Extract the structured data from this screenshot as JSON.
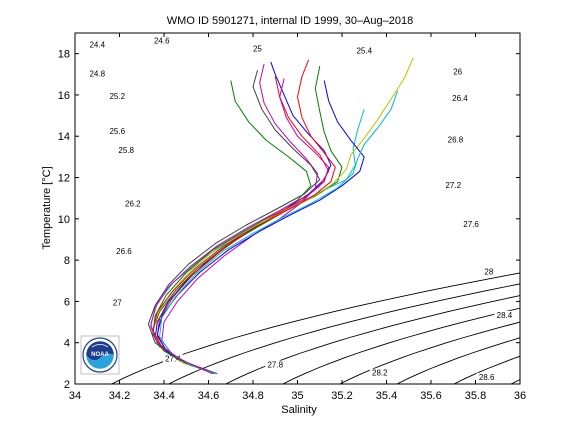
{
  "chart_data": {
    "type": "line",
    "title": "WMO ID 5901271, internal ID 1999, 30–Aug–2018",
    "xlabel": "Salinity",
    "ylabel": "Temperature [°C]",
    "xlim": [
      34,
      36
    ],
    "ylim": [
      2,
      19
    ],
    "x_ticks": [
      "34",
      "34.2",
      "34.4",
      "34.6",
      "34.8",
      "35",
      "35.2",
      "35.4",
      "35.6",
      "35.8",
      "36"
    ],
    "y_ticks": [
      "2",
      "4",
      "6",
      "8",
      "10",
      "12",
      "14",
      "16",
      "18"
    ],
    "grid": false,
    "density_contours": {
      "levels": [
        "24.4",
        "24.6",
        "24.8",
        "25",
        "25.2",
        "25.4",
        "25.6",
        "25.8",
        "26",
        "26.2",
        "26.4",
        "26.6",
        "26.8",
        "27",
        "27.2",
        "27.4",
        "27.6",
        "27.8",
        "28",
        "28.2",
        "28.4",
        "28.6"
      ],
      "color": "#000000",
      "labels": [
        {
          "text": "24.4",
          "s": 34.1,
          "t": 18.3
        },
        {
          "text": "24.6",
          "s": 34.39,
          "t": 18.5
        },
        {
          "text": "25",
          "s": 34.82,
          "t": 18.1
        },
        {
          "text": "25.4",
          "s": 35.3,
          "t": 18.0
        },
        {
          "text": "24.8",
          "s": 34.1,
          "t": 16.9
        },
        {
          "text": "25.2",
          "s": 34.19,
          "t": 15.8
        },
        {
          "text": "26",
          "s": 35.72,
          "t": 17.0
        },
        {
          "text": "26.4",
          "s": 35.73,
          "t": 15.7
        },
        {
          "text": "25.6",
          "s": 34.19,
          "t": 14.1
        },
        {
          "text": "25.8",
          "s": 34.23,
          "t": 13.2
        },
        {
          "text": "26.8",
          "s": 35.71,
          "t": 13.7
        },
        {
          "text": "27.2",
          "s": 35.7,
          "t": 11.5
        },
        {
          "text": "26.2",
          "s": 34.26,
          "t": 10.6
        },
        {
          "text": "27.6",
          "s": 35.78,
          "t": 9.6
        },
        {
          "text": "26.6",
          "s": 34.22,
          "t": 8.3
        },
        {
          "text": "28",
          "s": 35.86,
          "t": 7.3
        },
        {
          "text": "27",
          "s": 34.19,
          "t": 5.8
        },
        {
          "text": "28.4",
          "s": 35.93,
          "t": 5.2
        },
        {
          "text": "27.4",
          "s": 34.44,
          "t": 3.1
        },
        {
          "text": "27.8",
          "s": 34.9,
          "t": 2.8
        },
        {
          "text": "28.2",
          "s": 35.37,
          "t": 2.4
        },
        {
          "text": "28.6",
          "s": 35.85,
          "t": 2.2
        }
      ]
    },
    "profile_colors": [
      "#0000ff",
      "#008000",
      "#ff0000",
      "#00bfbf",
      "#bf00bf",
      "#bfbf00",
      "#404040"
    ],
    "series": [
      {
        "values": [
          [
            34.63,
            2.5
          ],
          [
            34.5,
            3.0
          ],
          [
            34.4,
            3.6
          ],
          [
            34.36,
            4.2
          ],
          [
            34.37,
            5.0
          ],
          [
            34.42,
            6.0
          ],
          [
            34.5,
            7.0
          ],
          [
            34.6,
            8.0
          ],
          [
            34.72,
            9.0
          ],
          [
            34.85,
            9.8
          ],
          [
            34.95,
            10.5
          ],
          [
            35.05,
            11.2
          ],
          [
            35.12,
            11.9
          ],
          [
            35.15,
            12.6
          ],
          [
            35.12,
            13.3
          ],
          [
            35.05,
            14.1
          ],
          [
            34.98,
            15.0
          ],
          [
            34.94,
            16.0
          ],
          [
            34.9,
            17.0
          ],
          [
            34.88,
            17.6
          ]
        ]
      },
      {
        "values": [
          [
            34.63,
            2.5
          ],
          [
            34.48,
            3.1
          ],
          [
            34.38,
            3.8
          ],
          [
            34.35,
            4.6
          ],
          [
            34.38,
            5.5
          ],
          [
            34.45,
            6.5
          ],
          [
            34.55,
            7.6
          ],
          [
            34.68,
            8.7
          ],
          [
            34.82,
            9.6
          ],
          [
            34.95,
            10.4
          ],
          [
            35.08,
            11.1
          ],
          [
            35.18,
            11.8
          ],
          [
            35.2,
            12.5
          ],
          [
            35.15,
            13.3
          ],
          [
            35.12,
            14.2
          ],
          [
            35.1,
            15.2
          ],
          [
            35.08,
            16.3
          ],
          [
            35.1,
            17.4
          ]
        ]
      },
      {
        "values": [
          [
            34.64,
            2.5
          ],
          [
            34.52,
            2.9
          ],
          [
            34.42,
            3.5
          ],
          [
            34.37,
            4.3
          ],
          [
            34.38,
            5.2
          ],
          [
            34.44,
            6.2
          ],
          [
            34.53,
            7.3
          ],
          [
            34.65,
            8.4
          ],
          [
            34.78,
            9.4
          ],
          [
            34.9,
            10.2
          ],
          [
            35.02,
            10.9
          ],
          [
            35.1,
            11.6
          ],
          [
            35.14,
            12.3
          ],
          [
            35.1,
            13.1
          ],
          [
            35.02,
            14.0
          ],
          [
            34.96,
            14.9
          ],
          [
            34.92,
            15.9
          ],
          [
            34.9,
            16.9
          ]
        ]
      },
      {
        "values": [
          [
            34.62,
            2.5
          ],
          [
            34.47,
            3.2
          ],
          [
            34.37,
            4.0
          ],
          [
            34.34,
            4.9
          ],
          [
            34.37,
            5.9
          ],
          [
            34.44,
            6.9
          ],
          [
            34.55,
            7.9
          ],
          [
            34.69,
            8.9
          ],
          [
            34.84,
            9.8
          ],
          [
            34.98,
            10.6
          ],
          [
            35.1,
            11.3
          ],
          [
            35.22,
            11.9
          ],
          [
            35.26,
            12.6
          ],
          [
            35.25,
            13.4
          ],
          [
            35.27,
            14.3
          ],
          [
            35.3,
            15.3
          ]
        ]
      },
      {
        "values": [
          [
            34.64,
            2.5
          ],
          [
            34.53,
            2.9
          ],
          [
            34.44,
            3.4
          ],
          [
            34.39,
            4.1
          ],
          [
            34.4,
            5.0
          ],
          [
            34.46,
            6.0
          ],
          [
            34.55,
            7.1
          ],
          [
            34.67,
            8.2
          ],
          [
            34.8,
            9.2
          ],
          [
            34.92,
            10.0
          ],
          [
            35.02,
            10.8
          ],
          [
            35.08,
            11.5
          ],
          [
            35.09,
            12.2
          ],
          [
            35.04,
            12.9
          ],
          [
            34.97,
            13.7
          ],
          [
            34.9,
            14.6
          ],
          [
            34.85,
            15.6
          ],
          [
            34.83,
            16.6
          ],
          [
            34.85,
            17.5
          ]
        ]
      },
      {
        "values": [
          [
            34.63,
            2.5
          ],
          [
            34.49,
            3.0
          ],
          [
            34.39,
            3.7
          ],
          [
            34.35,
            4.5
          ],
          [
            34.37,
            5.4
          ],
          [
            34.43,
            6.4
          ],
          [
            34.52,
            7.5
          ],
          [
            34.64,
            8.6
          ],
          [
            34.78,
            9.5
          ],
          [
            34.93,
            10.3
          ],
          [
            35.06,
            11.0
          ],
          [
            35.16,
            11.7
          ],
          [
            35.22,
            12.4
          ],
          [
            35.24,
            13.1
          ],
          [
            35.3,
            13.9
          ],
          [
            35.36,
            14.8
          ],
          [
            35.42,
            15.8
          ],
          [
            35.48,
            16.8
          ],
          [
            35.52,
            17.8
          ]
        ]
      },
      {
        "values": [
          [
            34.62,
            2.5
          ],
          [
            34.46,
            3.2
          ],
          [
            34.36,
            4.0
          ],
          [
            34.33,
            4.9
          ],
          [
            34.36,
            5.8
          ],
          [
            34.42,
            6.8
          ],
          [
            34.51,
            7.8
          ],
          [
            34.63,
            8.8
          ],
          [
            34.77,
            9.7
          ],
          [
            34.91,
            10.5
          ],
          [
            35.03,
            11.2
          ],
          [
            35.1,
            11.9
          ],
          [
            35.06,
            12.6
          ],
          [
            34.98,
            13.4
          ],
          [
            34.9,
            14.3
          ],
          [
            34.84,
            15.3
          ],
          [
            34.8,
            16.4
          ],
          [
            34.82,
            17.2
          ]
        ]
      },
      {
        "values": [
          [
            34.64,
            2.5
          ],
          [
            34.51,
            3.0
          ],
          [
            34.41,
            3.6
          ],
          [
            34.37,
            4.4
          ],
          [
            34.39,
            5.3
          ],
          [
            34.46,
            6.3
          ],
          [
            34.56,
            7.4
          ],
          [
            34.69,
            8.5
          ],
          [
            34.83,
            9.4
          ],
          [
            34.97,
            10.2
          ],
          [
            35.1,
            10.9
          ],
          [
            35.2,
            11.6
          ],
          [
            35.28,
            12.3
          ],
          [
            35.3,
            13.0
          ],
          [
            35.24,
            13.8
          ],
          [
            35.18,
            14.7
          ],
          [
            35.14,
            15.7
          ],
          [
            35.12,
            16.7
          ]
        ]
      },
      {
        "values": [
          [
            34.63,
            2.5
          ],
          [
            34.5,
            3.0
          ],
          [
            34.4,
            3.6
          ],
          [
            34.35,
            4.4
          ],
          [
            34.36,
            5.3
          ],
          [
            34.41,
            6.3
          ],
          [
            34.5,
            7.4
          ],
          [
            34.62,
            8.5
          ],
          [
            34.76,
            9.4
          ],
          [
            34.89,
            10.2
          ],
          [
            35.0,
            10.9
          ],
          [
            35.06,
            11.6
          ],
          [
            35.04,
            12.3
          ],
          [
            34.96,
            13.0
          ],
          [
            34.86,
            13.8
          ],
          [
            34.78,
            14.7
          ],
          [
            34.72,
            15.7
          ],
          [
            34.7,
            16.7
          ]
        ]
      },
      {
        "values": [
          [
            34.63,
            2.5
          ],
          [
            34.49,
            3.1
          ],
          [
            34.39,
            3.8
          ],
          [
            34.35,
            4.6
          ],
          [
            34.37,
            5.5
          ],
          [
            34.44,
            6.5
          ],
          [
            34.54,
            7.6
          ],
          [
            34.67,
            8.7
          ],
          [
            34.81,
            9.6
          ],
          [
            34.95,
            10.4
          ],
          [
            35.07,
            11.1
          ],
          [
            35.15,
            11.8
          ],
          [
            35.17,
            12.5
          ],
          [
            35.12,
            13.2
          ],
          [
            35.06,
            14.0
          ],
          [
            35.02,
            14.9
          ],
          [
            35.0,
            15.9
          ],
          [
            35.02,
            16.9
          ],
          [
            35.05,
            17.7
          ]
        ]
      },
      {
        "values": [
          [
            34.64,
            2.5
          ],
          [
            34.52,
            2.9
          ],
          [
            34.43,
            3.5
          ],
          [
            34.38,
            4.3
          ],
          [
            34.39,
            5.2
          ],
          [
            34.45,
            6.2
          ],
          [
            34.54,
            7.3
          ],
          [
            34.66,
            8.4
          ],
          [
            34.8,
            9.3
          ],
          [
            34.94,
            10.1
          ],
          [
            35.07,
            10.8
          ],
          [
            35.18,
            11.5
          ],
          [
            35.25,
            12.2
          ],
          [
            35.27,
            12.9
          ],
          [
            35.3,
            13.6
          ],
          [
            35.36,
            14.4
          ],
          [
            35.42,
            15.3
          ],
          [
            35.45,
            16.2
          ]
        ]
      },
      {
        "values": [
          [
            34.62,
            2.5
          ],
          [
            34.47,
            3.2
          ],
          [
            34.37,
            4.0
          ],
          [
            34.34,
            4.8
          ],
          [
            34.36,
            5.7
          ],
          [
            34.42,
            6.7
          ],
          [
            34.52,
            7.7
          ],
          [
            34.64,
            8.7
          ],
          [
            34.78,
            9.6
          ],
          [
            34.92,
            10.4
          ],
          [
            35.04,
            11.1
          ],
          [
            35.12,
            11.8
          ],
          [
            35.14,
            12.5
          ],
          [
            35.08,
            13.2
          ],
          [
            35.0,
            14.0
          ],
          [
            34.95,
            14.9
          ],
          [
            34.92,
            15.9
          ],
          [
            34.94,
            16.8
          ]
        ]
      }
    ]
  }
}
